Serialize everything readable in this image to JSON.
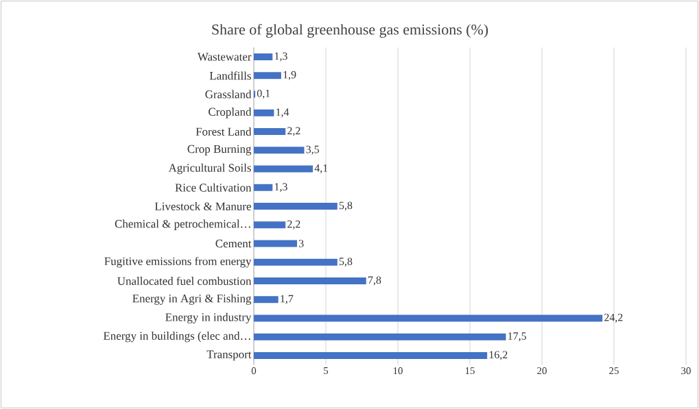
{
  "chart_data": {
    "type": "bar",
    "orientation": "horizontal",
    "title": "Share of global greenhouse gas emissions (%)",
    "categories": [
      "Wastewater",
      "Landfills",
      "Grassland",
      "Cropland",
      "Forest Land",
      "Crop Burning",
      "Agricultural Soils",
      "Rice Cultivation",
      "Livestock & Manure",
      "Chemical & petrochemical…",
      "Cement",
      "Fugitive emissions from energy",
      "Unallocated fuel combustion",
      "Energy in Agri & Fishing",
      "Energy in industry",
      "Energy in buildings (elec and…",
      "Transport"
    ],
    "values": [
      1.3,
      1.9,
      0.1,
      1.4,
      2.2,
      3.5,
      4.1,
      1.3,
      5.8,
      2.2,
      3,
      5.8,
      7.8,
      1.7,
      24.2,
      17.5,
      16.2
    ],
    "value_labels": [
      "1,3",
      "1,9",
      "0,1",
      "1,4",
      "2,2",
      "3,5",
      "4,1",
      "1,3",
      "5,8",
      "2,2",
      "3",
      "5,8",
      "7,8",
      "1,7",
      "24,2",
      "17,5",
      "16,2"
    ],
    "color": "#4472c4",
    "xlim": [
      0,
      30
    ],
    "xticks": [
      0,
      5,
      10,
      15,
      20,
      25,
      30
    ],
    "grid": "x"
  }
}
